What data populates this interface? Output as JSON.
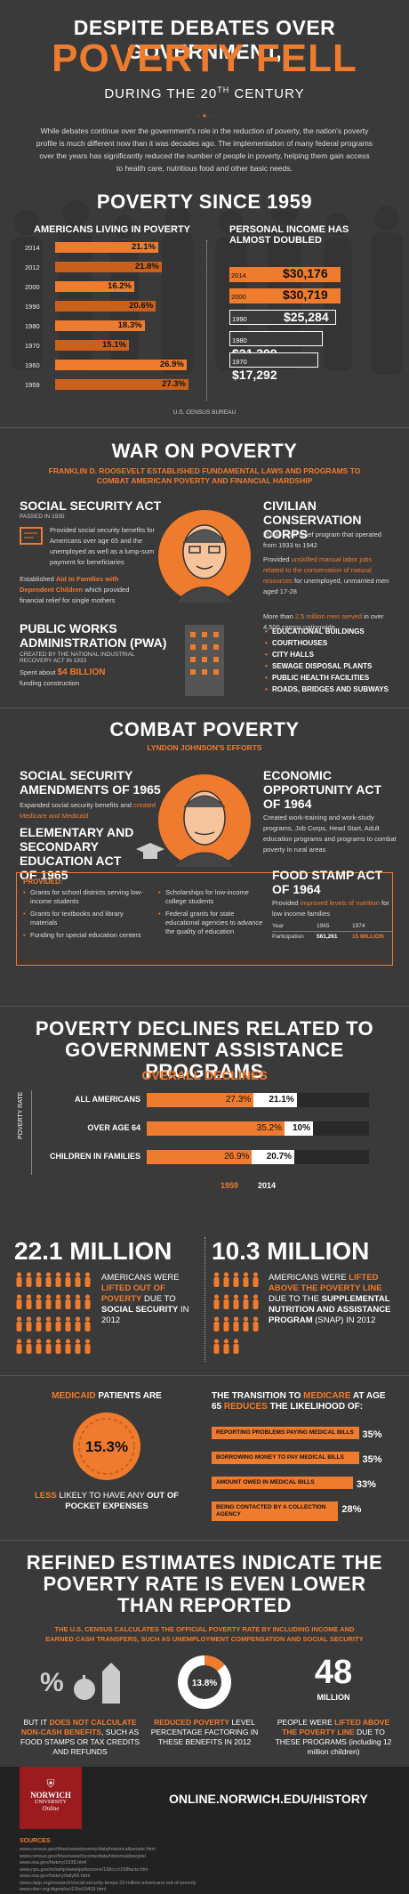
{
  "header": {
    "line1": "DESPITE DEBATES OVER GOVERNMENT,",
    "line2": "POVERTY FELL",
    "line3": "DURING THE 20",
    "line3_sup": "TH",
    "line3_end": " CENTURY",
    "intro": "While debates continue over the government's role in the reduction of poverty, the nation's poverty profile is much different now than it was decades ago. The implementation of many federal programs over the years has significantly reduced the number of people in poverty, helping them gain access to health care, nutritious food and other basic needs."
  },
  "since1959": {
    "title": "POVERTY SINCE 1959",
    "left_title": "AMERICANS LIVING IN POVERTY",
    "right_title": "PERSONAL INCOME HAS ALMOST DOUBLED",
    "source": "U.S. CENSUS BUREAU",
    "poverty": [
      {
        "year": "2014",
        "value": "21.1%",
        "pct": 21.1
      },
      {
        "year": "2012",
        "value": "21.8%",
        "pct": 21.8
      },
      {
        "year": "2000",
        "value": "16.2%",
        "pct": 16.2
      },
      {
        "year": "1990",
        "value": "20.6%",
        "pct": 20.6
      },
      {
        "year": "1980",
        "value": "18.3%",
        "pct": 18.3
      },
      {
        "year": "1970",
        "value": "15.1%",
        "pct": 15.1
      },
      {
        "year": "1960",
        "value": "26.9%",
        "pct": 26.9
      },
      {
        "year": "1959",
        "value": "27.3%",
        "pct": 27.3
      }
    ],
    "income": [
      {
        "year": "2014",
        "value": "$30,176"
      },
      {
        "year": "2000",
        "value": "$30,719"
      },
      {
        "year": "1990",
        "value": "$25,284"
      },
      {
        "year": "1980",
        "value": "$21,309"
      },
      {
        "year": "1970",
        "value": "$17,292"
      }
    ]
  },
  "war": {
    "title": "WAR ON POVERTY",
    "subtitle": "FRANKLIN D. ROOSEVELT ESTABLISHED FUNDAMENTAL LAWS AND PROGRAMS TO COMBAT AMERICAN POVERTY AND FINANCIAL HARDSHIP",
    "ssa_title": "SOCIAL SECURITY ACT",
    "ssa_passed": "PASSED IN 1935",
    "ssa_text1": "Provided social security benefits for Americans over age 65 and the unemployed as well as a lump-sum payment for beneficiaries",
    "ssa_text2a": "Established ",
    "ssa_text2b": "Aid to Families with Dependent Children",
    "ssa_text2c": " which provided financial relief for single mothers",
    "ccc_title": "CIVILIAN CONSERVATION CORPS",
    "ccc_text1": "Public work relief program that operated from 1933 to 1942",
    "ccc_text2a": "Provided ",
    "ccc_text2b": "unskilled manual labor jobs related to the conservation of natural resources",
    "ccc_text2c": " for unemployed, unmarried men aged 17-28",
    "ccc_text3a": "More than ",
    "ccc_text3b": "2.5 million men served",
    "ccc_text3c": " in over 4,500 camps nationwide",
    "pwa_title": "PUBLIC WORKS ADMINISTRATION (PWA)",
    "pwa_created": "CREATED BY THE NATIONAL INDUSTRIAL RECOVERY ACT IN 1933",
    "pwa_spent_a": "Spent about ",
    "pwa_spent_b": "$4 BILLION",
    "pwa_spent_c": "funding construction",
    "pwa_list": [
      "EDUCATIONAL BUILDINGS",
      "COURTHOUSES",
      "CITY HALLS",
      "SEWAGE DISPOSAL PLANTS",
      "PUBLIC HEALTH FACILITIES",
      "ROADS, BRIDGES AND SUBWAYS"
    ]
  },
  "combat": {
    "title": "COMBAT POVERTY",
    "subtitle": "LYNDON JOHNSON'S EFFORTS",
    "ssa65_title": "SOCIAL SECURITY AMENDMENTS OF 1965",
    "ssa65_text_a": "Expanded social security benefits and ",
    "ssa65_text_b": "created Medicare and Medicaid",
    "esea_title": "ELEMENTARY AND SECONDARY EDUCATION ACT OF 1965",
    "provided": "PROVIDED:",
    "esea_left": [
      "Grants for school districts serving low-income students",
      "Grants for textbooks and library materials",
      "Funding for special education centers"
    ],
    "esea_right": [
      "Scholarships for low-income college students",
      "Federal grants for state educational agencies to advance the quality of education"
    ],
    "eoa_title": "ECONOMIC OPPORTUNITY ACT OF 1964",
    "eoa_text": "Created work-training and work-study programs, Job Corps, Head Start, Adult education programs and programs to combat poverty in rural areas",
    "fsa_title": "FOOD STAMP ACT OF 1964",
    "fsa_text_a": "Provided ",
    "fsa_text_b": "improved levels of nutrition",
    "fsa_text_c": " for low income families",
    "fsa_year": "Year",
    "fsa_y1": "1965",
    "fsa_y2": "1974",
    "fsa_part": "Participation",
    "fsa_v1": "561,261",
    "fsa_v2": "15 MILLION"
  },
  "declines": {
    "title": "POVERTY DECLINES RELATED TO GOVERNMENT ASSISTANCE PROGRAMS",
    "overall": "OVERALL DECLINES",
    "axis": "POVERTY RATE",
    "rows": [
      {
        "label": "ALL AMERICANS",
        "v1959": "27.3%",
        "v2014": "21.1%",
        "p1959": 27.3,
        "p2014": 21.1
      },
      {
        "label": "OVER AGE 64",
        "v1959": "35.2%",
        "v2014": "10%",
        "p1959": 35.2,
        "p2014": 10
      },
      {
        "label": "CHILDREN IN FAMILIES",
        "v1959": "26.9%",
        "v2014": "20.7%",
        "p1959": 26.9,
        "p2014": 20.7
      }
    ],
    "y1959": "1959",
    "y2014": "2014"
  },
  "millions": {
    "left_num": "22.1 MILLION",
    "left_text_a": "AMERICANS WERE ",
    "left_text_b": "LIFTED OUT OF POVERTY",
    "left_text_c": " DUE TO ",
    "left_text_d": "SOCIAL SECURITY",
    "left_text_e": " IN 2012",
    "right_num": "10.3 MILLION",
    "right_text_a": "AMERICANS WERE ",
    "right_text_b": "LIFTED ABOVE THE POVERTY LINE",
    "right_text_c": " DUE TO THE ",
    "right_text_d": "SUPPLEMENTAL NUTRITION AND ASSISTANCE PROGRAM",
    "right_text_e": " (SNAP) IN 2012"
  },
  "medicaid": {
    "intro_a": "MEDICAID",
    "intro_b": " PATIENTS ARE",
    "pct": "15.3%",
    "less_a": "LESS",
    "less_b": " LIKELY TO HAVE ANY ",
    "less_c": "OUT OF POCKET EXPENSES",
    "medicare_a": "THE TRANSITION TO ",
    "medicare_b": "MEDICARE",
    "medicare_c": " AT AGE 65 ",
    "medicare_d": "REDUCES",
    "medicare_e": " THE LIKELIHOOD OF:",
    "items": [
      {
        "label": "REPORTING PROBLEMS PAYING MEDICAL BILLS",
        "value": "35%",
        "pct": 35
      },
      {
        "label": "BORROWING MONEY TO PAY MEDICAL BILLS",
        "value": "35%",
        "pct": 35
      },
      {
        "label": "AMOUNT OWED IN MEDICAL BILLS",
        "value": "33%",
        "pct": 33
      },
      {
        "label": "BEING CONTACTED BY A COLLECTION AGENCY",
        "value": "28%",
        "pct": 28
      }
    ]
  },
  "refined": {
    "title": "REFINED ESTIMATES INDICATE THE POVERTY RATE IS EVEN LOWER THAN REPORTED",
    "subtitle": "THE U.S. CENSUS CALCULATES THE OFFICIAL POVERTY RATE BY INCLUDING INCOME AND EARNED CASH TRANSFERS, SUCH AS UNEMPLOYMENT COMPENSATION AND SOCIAL SECURITY",
    "col1_a": "BUT IT ",
    "col1_b": "DOES NOT CALCULATE NON-CASH BENEFITS",
    "col1_c": ", SUCH AS FOOD STAMPS OR TAX CREDITS AND REFUNDS",
    "pie_label": "13.8%",
    "pie_pct": 13.8,
    "col2_a": "REDUCED POVERTY",
    "col2_b": " LEVEL PERCENTAGE FACTORING IN THESE BENEFITS IN 2012",
    "num48": "48",
    "num48_sub": "MILLION",
    "col3_a": "PEOPLE WERE ",
    "col3_b": "LIFTED ABOVE THE POVERTY LINE",
    "col3_c": " DUE TO THESE PROGRAMS (including 12 million children)"
  },
  "footer": {
    "logo1": "NORWICH",
    "logo2": "UNIVERSITY",
    "logo3": "Online",
    "url": "ONLINE.NORWICH.EDU/HISTORY",
    "sources_title": "SOURCES",
    "sources": [
      "www.census.gov/hhes/www/poverty/data/historical/people.html",
      "www.census.gov/hhes/www/income/data/historical/people/",
      "www.ssa.gov/history/1935.html",
      "www.nps.gov/nr/twhp/wwwlps/lessons/158ccc/158facts.htm",
      "www.ssa.gov/history/tally65.html",
      "www.cbpp.org/research/social-security-keeps-22-million-americans-out-of-poverty",
      "www.nber.org/digest/oct13/w19418.html",
      "www.fns.usda.gov/snap/short-history-snap",
      "www.gpo.gov/fdsys/pkg/STATUTE-78/pdf/STATUTE-78-Pg508.pdf",
      "www.economicpolicyinstitute.org",
      "www.census.gov/hhes/povmeas/",
      "www.irp.wisc.edu/research/safety-net-more-effective-against-poverty-than-previously-thought"
    ]
  }
}
